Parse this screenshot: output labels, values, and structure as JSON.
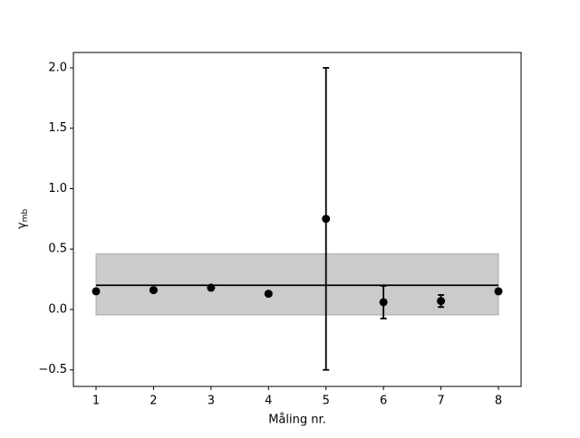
{
  "chart_data": {
    "type": "errorbar",
    "xlabel": "Måling nr.",
    "ylabel": {
      "symbol": "γ",
      "subscript": "mb"
    },
    "x": [
      1,
      2,
      3,
      4,
      5,
      6,
      7,
      8
    ],
    "values": [
      0.15,
      0.16,
      0.18,
      0.13,
      0.75,
      0.06,
      0.07,
      0.15
    ],
    "errors": [
      null,
      null,
      null,
      null,
      1.25,
      0.135,
      0.05,
      null
    ],
    "color": "#000000",
    "mean": 0.2,
    "band": [
      -0.045,
      0.46
    ],
    "band_color": "#cbcbcb",
    "span": [
      1,
      8
    ],
    "xlim": [
      0.606,
      8.394
    ],
    "ylim": [
      -0.637,
      2.127
    ],
    "xticks": [
      1,
      2,
      3,
      4,
      5,
      6,
      7,
      8
    ],
    "yticks": [
      {
        "value": -0.5,
        "label": "−0.5"
      },
      {
        "value": 0,
        "label": "0.0"
      },
      0.5,
      {
        "value": 1,
        "label": "1.0"
      },
      1.5,
      {
        "value": 2,
        "label": "2.0"
      }
    ]
  }
}
